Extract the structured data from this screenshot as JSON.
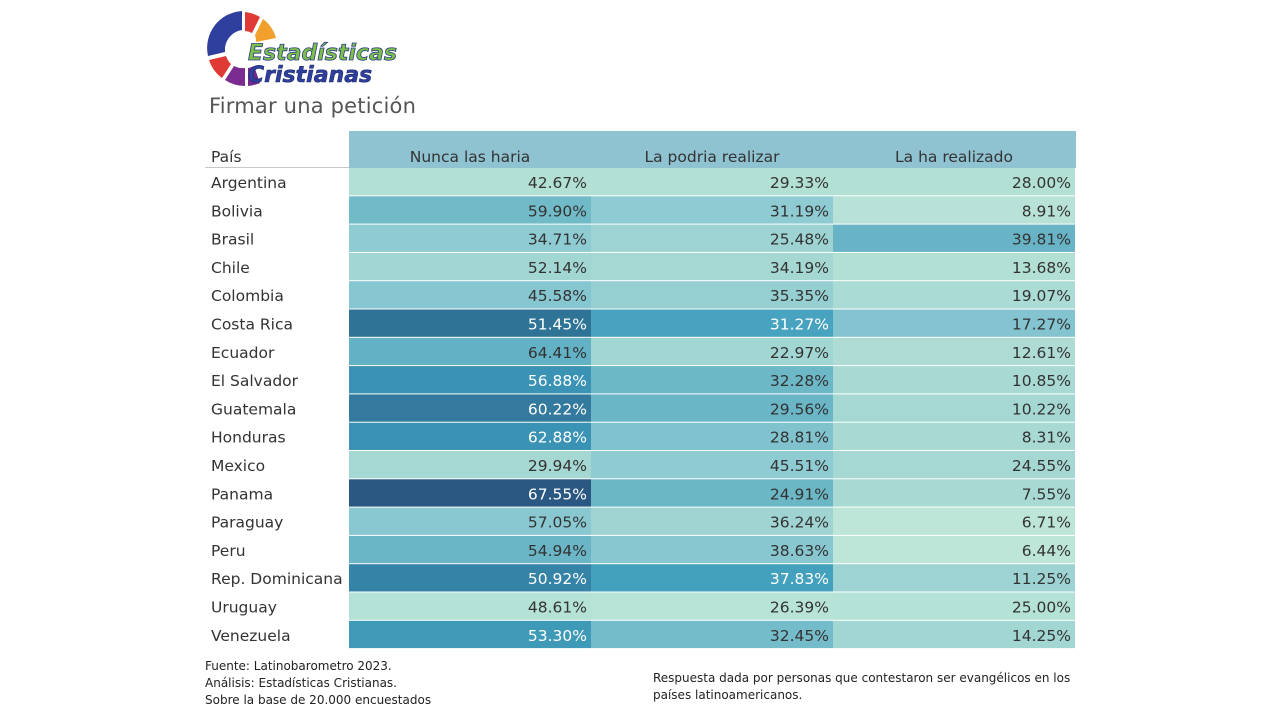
{
  "logo": {
    "line1": "Estadísticas",
    "line2": "Cristianas"
  },
  "subtitle": "Firmar una petición",
  "footer": {
    "source": "Fuente: Latinobarometro 2023.",
    "analysis": "Análisis: Estadísticas Cristianas.",
    "base": "Sobre la base de 20.000 encuestados",
    "note_line1": "Respuesta dada por personas que contestaron ser evangélicos en los",
    "note_line2": "países latinoamericanos."
  },
  "colors": {
    "header_bg": "#8fc3d2",
    "low": "#bde5d8",
    "high": "#2b5680"
  },
  "chart_data": {
    "type": "table",
    "row_header": "País",
    "columns": [
      "Nunca las haria",
      "La podria realizar",
      "La ha realizado"
    ],
    "rows": [
      {
        "country": "Argentina",
        "values": [
          42.67,
          29.33,
          28.0
        ],
        "labels": [
          "42.67%",
          "29.33%",
          "28.00%"
        ],
        "colors": [
          "#b3e0d5",
          "#b3e0d5",
          "#b3e0d5"
        ]
      },
      {
        "country": "Bolivia",
        "values": [
          59.9,
          31.19,
          8.91
        ],
        "labels": [
          "59.90%",
          "31.19%",
          "8.91%"
        ],
        "colors": [
          "#71bac8",
          "#8ecbd2",
          "#b8e2d7"
        ]
      },
      {
        "country": "Brasil",
        "values": [
          34.71,
          25.48,
          39.81
        ],
        "labels": [
          "34.71%",
          "25.48%",
          "39.81%"
        ],
        "colors": [
          "#8ecbd2",
          "#9ed3d3",
          "#68b4c6"
        ]
      },
      {
        "country": "Chile",
        "values": [
          52.14,
          34.19,
          13.68
        ],
        "labels": [
          "52.14%",
          "34.19%",
          "13.68%"
        ],
        "colors": [
          "#a2d6d3",
          "#a6d8d3",
          "#b3e0d5"
        ]
      },
      {
        "country": "Colombia",
        "values": [
          45.58,
          35.35,
          19.07
        ],
        "labels": [
          "45.58%",
          "35.35%",
          "19.07%"
        ],
        "colors": [
          "#86c6d0",
          "#96cfd2",
          "#aadbd4"
        ]
      },
      {
        "country": "Costa Rica",
        "values": [
          51.45,
          31.27,
          17.27
        ],
        "labels": [
          "51.45%",
          "31.27%",
          "17.27%"
        ],
        "colors": [
          "#2f7397",
          "#48a3c0",
          "#83c4d0"
        ]
      },
      {
        "country": "Ecuador",
        "values": [
          64.41,
          22.97,
          12.61
        ],
        "labels": [
          "64.41%",
          "22.97%",
          "12.61%"
        ],
        "colors": [
          "#62b1c4",
          "#a2d6d3",
          "#aedcd4"
        ]
      },
      {
        "country": "El Salvador",
        "values": [
          56.88,
          32.28,
          10.85
        ],
        "labels": [
          "56.88%",
          "32.28%",
          "10.85%"
        ],
        "colors": [
          "#3a93b4",
          "#6cb8c7",
          "#a8d9d3"
        ]
      },
      {
        "country": "Guatemala",
        "values": [
          60.22,
          29.56,
          10.22
        ],
        "labels": [
          "60.22%",
          "29.56%",
          "10.22%"
        ],
        "colors": [
          "#337a9e",
          "#6ab6c6",
          "#a6d8d3"
        ]
      },
      {
        "country": "Honduras",
        "values": [
          62.88,
          28.81,
          8.31
        ],
        "labels": [
          "62.88%",
          "28.81%",
          "8.31%"
        ],
        "colors": [
          "#3a92b4",
          "#80c3cf",
          "#a8d9d3"
        ]
      },
      {
        "country": "Mexico",
        "values": [
          29.94,
          45.51,
          24.55
        ],
        "labels": [
          "29.94%",
          "45.51%",
          "24.55%"
        ],
        "colors": [
          "#a6d8d3",
          "#8fcbd2",
          "#a6d8d3"
        ]
      },
      {
        "country": "Panama",
        "values": [
          67.55,
          24.91,
          7.55
        ],
        "labels": [
          "67.55%",
          "24.91%",
          "7.55%"
        ],
        "colors": [
          "#2b5882",
          "#6cb7c6",
          "#a8d9d3"
        ]
      },
      {
        "country": "Paraguay",
        "values": [
          57.05,
          36.24,
          6.71
        ],
        "labels": [
          "57.05%",
          "36.24%",
          "6.71%"
        ],
        "colors": [
          "#8ac8d1",
          "#a0d4d3",
          "#bde5d8"
        ]
      },
      {
        "country": "Peru",
        "values": [
          54.94,
          38.63,
          6.44
        ],
        "labels": [
          "54.94%",
          "38.63%",
          "6.44%"
        ],
        "colors": [
          "#6ab6c6",
          "#88c7d0",
          "#bde5d8"
        ]
      },
      {
        "country": "Rep. Dominicana",
        "values": [
          50.92,
          37.83,
          11.25
        ],
        "labels": [
          "50.92%",
          "37.83%",
          "11.25%"
        ],
        "colors": [
          "#3683a8",
          "#44a1bd",
          "#9ed3d3"
        ]
      },
      {
        "country": "Uruguay",
        "values": [
          48.61,
          26.39,
          25.0
        ],
        "labels": [
          "48.61%",
          "26.39%",
          "25.00%"
        ],
        "colors": [
          "#b5e2d6",
          "#b8e3d7",
          "#b5e2d6"
        ]
      },
      {
        "country": "Venezuela",
        "values": [
          53.3,
          32.45,
          14.25
        ],
        "labels": [
          "53.30%",
          "32.45%",
          "14.25%"
        ],
        "colors": [
          "#3f9ab8",
          "#74bcc9",
          "#a2d6d3"
        ]
      }
    ]
  }
}
